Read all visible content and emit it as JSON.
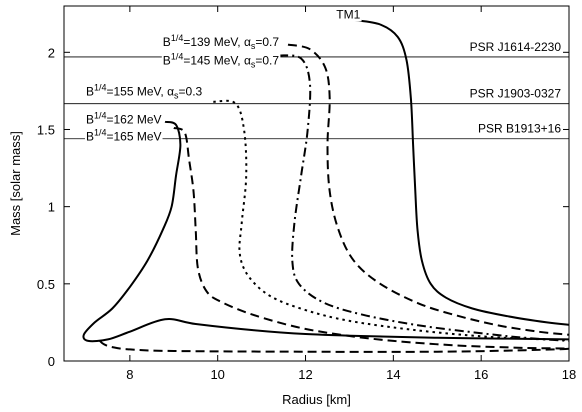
{
  "chart_data": {
    "type": "line",
    "title": "",
    "xlabel": "Radius [km]",
    "ylabel": "Mass [solar mass]",
    "xlim": [
      6.5,
      18
    ],
    "ylim": [
      0,
      2.3
    ],
    "xticks": [
      8,
      10,
      12,
      14,
      16,
      18
    ],
    "yticks": [
      0,
      0.5,
      1,
      1.5,
      2
    ],
    "grid": false,
    "legend": "none",
    "reference_lines": [
      {
        "label": "PSR J1614-2230",
        "y": 1.97
      },
      {
        "label": "PSR J1903-0327",
        "y": 1.667
      },
      {
        "label": "PSR B1913+16",
        "y": 1.44
      }
    ],
    "series": [
      {
        "label_main": "TM1",
        "label_sup": "",
        "label_rest": "",
        "label_alpha": "",
        "dash": "solid",
        "label_x": 12.7,
        "label_y": 2.22,
        "points": [
          [
            13.1,
            2.21
          ],
          [
            13.7,
            2.18
          ],
          [
            14.1,
            2.1
          ],
          [
            14.3,
            1.95
          ],
          [
            14.4,
            1.7
          ],
          [
            14.45,
            1.4
          ],
          [
            14.5,
            1.1
          ],
          [
            14.55,
            0.85
          ],
          [
            14.65,
            0.65
          ],
          [
            14.85,
            0.5
          ],
          [
            15.2,
            0.41
          ],
          [
            15.8,
            0.34
          ],
          [
            16.6,
            0.29
          ],
          [
            17.5,
            0.25
          ],
          [
            18,
            0.235
          ]
        ]
      },
      {
        "label_main": "B",
        "label_sup": "1/4",
        "label_rest": "=139 MeV, ",
        "label_alpha": "0.7",
        "dash": "dashed",
        "label_x": 8.75,
        "label_y": 2.04,
        "points": [
          [
            11.6,
            2.05
          ],
          [
            12.1,
            2.02
          ],
          [
            12.45,
            1.9
          ],
          [
            12.55,
            1.7
          ],
          [
            12.5,
            1.4
          ],
          [
            12.55,
            1.1
          ],
          [
            12.75,
            0.85
          ],
          [
            13.1,
            0.65
          ],
          [
            13.7,
            0.5
          ],
          [
            14.6,
            0.37
          ],
          [
            15.5,
            0.29
          ],
          [
            16.4,
            0.23
          ],
          [
            17.3,
            0.19
          ],
          [
            18,
            0.17
          ]
        ]
      },
      {
        "label_main": "B",
        "label_sup": "1/4",
        "label_rest": "=145 MeV, ",
        "label_alpha": "0.7",
        "dash": "dashdot",
        "label_x": 8.75,
        "label_y": 1.92,
        "points": [
          [
            11.4,
            1.98
          ],
          [
            11.9,
            1.96
          ],
          [
            12.1,
            1.8
          ],
          [
            12.05,
            1.5
          ],
          [
            11.9,
            1.2
          ],
          [
            11.75,
            0.9
          ],
          [
            11.7,
            0.65
          ],
          [
            11.85,
            0.5
          ],
          [
            12.4,
            0.38
          ],
          [
            13.3,
            0.3
          ],
          [
            14.6,
            0.23
          ],
          [
            16,
            0.18
          ],
          [
            17,
            0.15
          ],
          [
            18,
            0.13
          ]
        ]
      },
      {
        "label_main": "B",
        "label_sup": "1/4",
        "label_rest": "=155 MeV, ",
        "label_alpha": "0.3",
        "dash": "dotted",
        "label_x": 7.0,
        "label_y": 1.72,
        "points": [
          [
            9.9,
            1.68
          ],
          [
            10.4,
            1.67
          ],
          [
            10.6,
            1.5
          ],
          [
            10.65,
            1.2
          ],
          [
            10.55,
            0.9
          ],
          [
            10.5,
            0.7
          ],
          [
            10.7,
            0.55
          ],
          [
            11.2,
            0.42
          ],
          [
            12,
            0.33
          ],
          [
            13,
            0.26
          ],
          [
            14.5,
            0.2
          ],
          [
            16,
            0.16
          ],
          [
            17,
            0.145
          ],
          [
            18,
            0.135
          ]
        ]
      },
      {
        "label_main": "B",
        "label_sup": "1/4",
        "label_rest": "=162 MeV",
        "label_alpha": "",
        "dash": "solid",
        "label_x": 7.0,
        "label_y": 1.54,
        "points": [
          [
            8.8,
            1.55
          ],
          [
            9.05,
            1.53
          ],
          [
            9.15,
            1.4
          ],
          [
            9.05,
            1.2
          ],
          [
            8.95,
            1.0
          ],
          [
            8.75,
            0.85
          ],
          [
            8.4,
            0.65
          ],
          [
            8.0,
            0.48
          ],
          [
            7.6,
            0.34
          ],
          [
            7.2,
            0.25
          ],
          [
            6.95,
            0.17
          ],
          [
            7.05,
            0.13
          ],
          [
            7.5,
            0.14
          ],
          [
            8.0,
            0.19
          ],
          [
            8.8,
            0.27
          ],
          [
            9.5,
            0.24
          ],
          [
            10.8,
            0.2
          ],
          [
            12,
            0.175
          ],
          [
            13.5,
            0.16
          ],
          [
            15,
            0.15
          ],
          [
            16.5,
            0.145
          ],
          [
            18,
            0.14
          ]
        ]
      },
      {
        "label_main": "B",
        "label_sup": "1/4",
        "label_rest": "=165 MeV",
        "label_alpha": "",
        "dash": "dashed",
        "label_x": 7.0,
        "label_y": 1.43,
        "points": [
          [
            9.0,
            1.51
          ],
          [
            9.25,
            1.48
          ],
          [
            9.35,
            1.3
          ],
          [
            9.45,
            1.1
          ],
          [
            9.5,
            0.85
          ],
          [
            9.55,
            0.6
          ],
          [
            9.75,
            0.45
          ],
          [
            10.1,
            0.38
          ],
          [
            10.8,
            0.3
          ],
          [
            11.8,
            0.22
          ],
          [
            12.8,
            0.17
          ],
          [
            14,
            0.13
          ],
          [
            15.5,
            0.1
          ],
          [
            17,
            0.085
          ],
          [
            18,
            0.08
          ],
          [
            17,
            0.07
          ],
          [
            15,
            0.06
          ],
          [
            12,
            0.06
          ],
          [
            9,
            0.065
          ],
          [
            8,
            0.075
          ],
          [
            7.6,
            0.09
          ],
          [
            7.4,
            0.11
          ],
          [
            7.3,
            0.135
          ]
        ]
      }
    ]
  }
}
